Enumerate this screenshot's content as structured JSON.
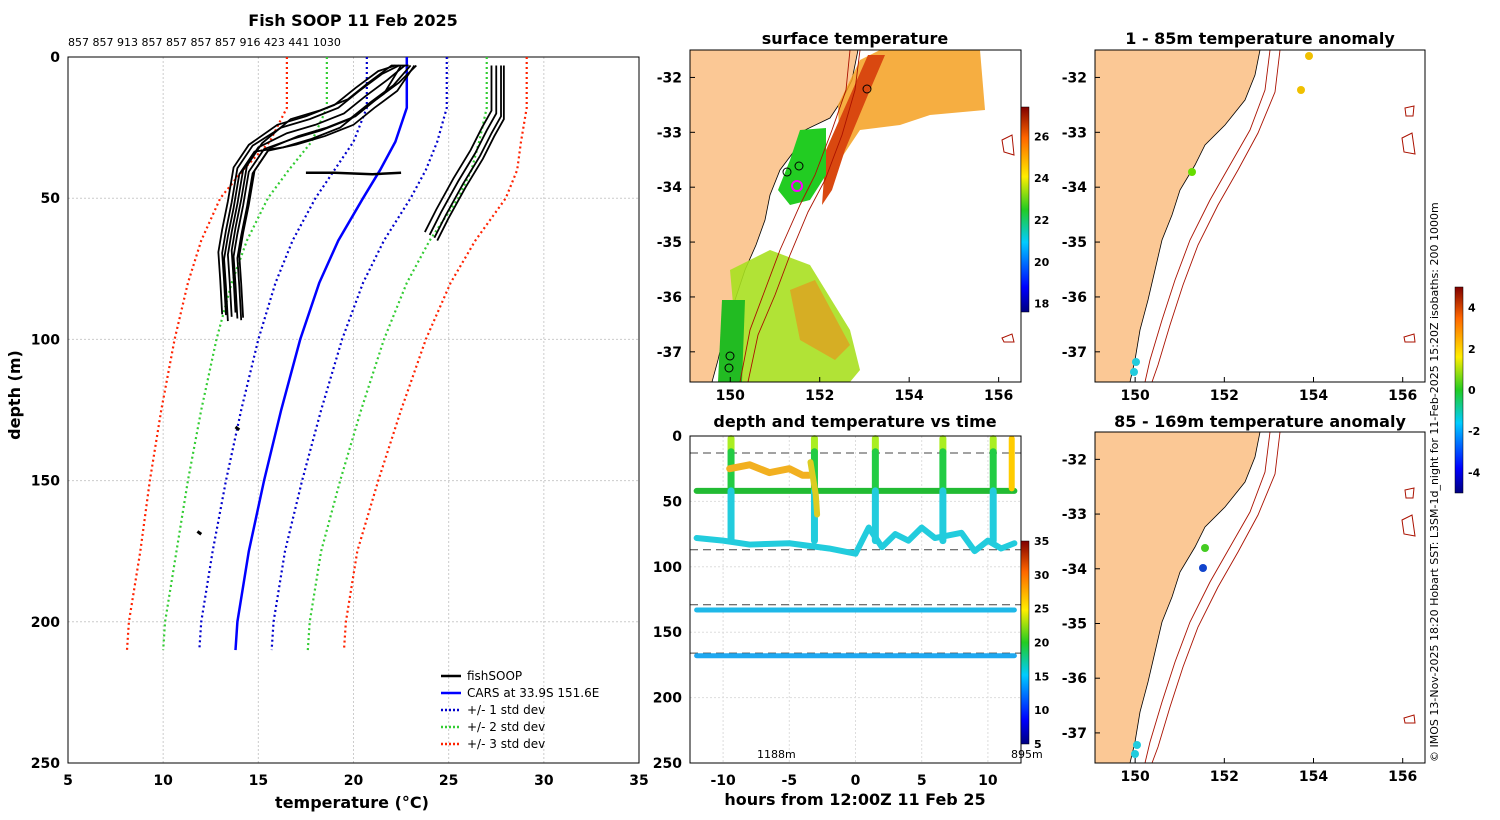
{
  "profile_chart": {
    "type": "line",
    "title": "Fish SOOP 11 Feb 2025",
    "subtitle": "857 857 913 857 857 857 857 916 423 441 1030",
    "xlabel": "temperature (°C)",
    "ylabel": "depth (m)",
    "xlim": [
      5,
      35
    ],
    "ylim": [
      250,
      0
    ],
    "xticks": [
      5,
      10,
      15,
      20,
      25,
      30,
      35
    ],
    "yticks": [
      0,
      50,
      100,
      150,
      200,
      250
    ],
    "legend": [
      "fishSOOP",
      "CARS at 33.9S 151.6E",
      "+/- 1 std dev",
      "+/- 2 std dev",
      "+/- 3 std dev"
    ],
    "legend_position": "bottom-right",
    "colors": {
      "fishsoop": "#000000",
      "cars": "#0000ff",
      "std1": "#0000cc",
      "std2": "#33cc33",
      "std3": "#ff2200"
    },
    "cars_depth": [
      0,
      18,
      30,
      40,
      50,
      65,
      80,
      100,
      125,
      150,
      175,
      200,
      210
    ],
    "cars_temp": [
      22.8,
      22.8,
      22.2,
      21.4,
      20.5,
      19.2,
      18.2,
      17.2,
      16.2,
      15.3,
      14.5,
      13.9,
      13.8
    ],
    "std1_half_width": [
      2.1,
      2.1,
      2.2,
      2.4,
      2.5,
      2.4,
      2.3,
      2.2,
      2.1,
      2.0,
      1.9,
      1.9,
      1.9
    ],
    "fishsoop_shallow_temp": [
      22.7,
      21.8,
      20.6,
      19.5,
      18.0,
      16.5,
      15.0,
      14.2,
      13.9,
      13.6,
      13.4,
      13.5,
      13.6
    ],
    "fishsoop_shallow_depth": [
      3,
      8,
      14,
      20,
      24,
      27,
      32,
      40,
      52,
      62,
      70,
      80,
      92
    ],
    "fishsoop_deep_temp": [
      27.5,
      27.5,
      27.0,
      26.4,
      25.5,
      24.6,
      24.0
    ],
    "fishsoop_deep_depth": [
      3,
      20,
      26,
      34,
      44,
      55,
      63
    ]
  },
  "sst_map": {
    "title": "surface temperature",
    "xticks": [
      150,
      152,
      154,
      156
    ],
    "yticks": [
      -32,
      -33,
      -34,
      -35,
      -36,
      -37
    ],
    "colorbar_ticks": [
      18,
      20,
      22,
      24,
      26
    ]
  },
  "anom_map_top": {
    "title": "1 - 85m temperature anomaly",
    "xticks": [
      150,
      152,
      154,
      156
    ],
    "yticks": [
      -32,
      -33,
      -34,
      -35,
      -36,
      -37
    ]
  },
  "anom_map_bottom": {
    "title": "85 - 169m temperature anomaly",
    "xticks": [
      150,
      152,
      154,
      156
    ],
    "yticks": [
      -32,
      -33,
      -34,
      -35,
      -36,
      -37
    ]
  },
  "anomaly_colorbar_ticks": [
    4,
    2,
    0,
    -2,
    -4
  ],
  "time_chart": {
    "type": "scatter",
    "title": "depth and temperature vs time",
    "xlabel": "hours from 12:00Z 11 Feb 25",
    "xticks": [
      -10,
      -5,
      0,
      5,
      10
    ],
    "yticks": [
      0,
      50,
      100,
      150,
      200,
      250
    ],
    "xlim": [
      -12.5,
      12.5
    ],
    "ylim": [
      250,
      0
    ],
    "colorbar_ticks": [
      35,
      30,
      25,
      20,
      15,
      10,
      5
    ],
    "annotation_left": "1188m",
    "annotation_right": "895m",
    "dashed_depths": [
      13,
      87,
      129,
      166
    ]
  },
  "credit": "© IMOS 13-Nov-2025 18:20 Hobart SST: L3SM-1d_night for 11-Feb-2025 15:20Z isobaths: 200  1000m"
}
